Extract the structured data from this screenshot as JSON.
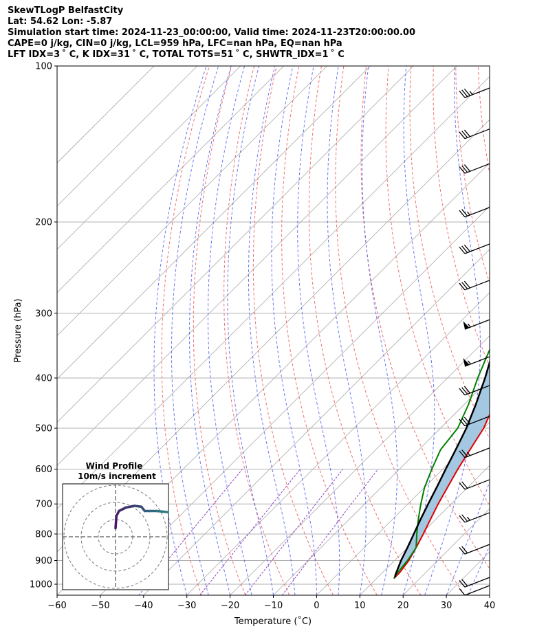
{
  "header": {
    "line1": "SkewTLogP BelfastCity",
    "line2": "Lat: 54.62   Lon: -5.87",
    "line3": "Simulation start time: 2024-11-23_00:00:00, Valid time: 2024-11-23T20:00:00.00",
    "line4": "CAPE=0 j/kg, CIN=0 j/kg, LCL=959 hPa, LFC=nan hPa, EQ=nan hPa",
    "line5": "LFT IDX=3 ˚ C, K IDX=31 ˚ C, TOTAL TOTS=51 ˚ C, SHWTR_IDX=1 ˚ C"
  },
  "chart_data": {
    "type": "line",
    "title": "SkewTLogP BelfastCity",
    "xlabel": "Temperature (˚C)",
    "ylabel": "Pressure (hPa)",
    "xlim": [
      -60,
      40
    ],
    "ylim": [
      1050,
      100
    ],
    "y_scale": "log",
    "grid": true,
    "x_ticks": [
      -60,
      -50,
      -40,
      -30,
      -20,
      -10,
      0,
      10,
      20,
      30,
      40
    ],
    "y_ticks": [
      100,
      200,
      300,
      400,
      500,
      600,
      700,
      800,
      900,
      1000
    ],
    "colors": {
      "temperature": "#e00000",
      "dewpoint": "#008000",
      "parcel": "#000000",
      "fill": "#9fc5e0",
      "dry_adiabats": "#f06060",
      "moist_adiabats": "#5060f0",
      "mixing_ratio": "#9040c0",
      "isotherms": "#aaaaaa"
    },
    "series": [
      {
        "name": "Temperature",
        "points": [
          [
            14.0,
            975
          ],
          [
            14.0,
            950
          ],
          [
            13.3,
            900
          ],
          [
            12.0,
            850
          ],
          [
            10.5,
            800
          ],
          [
            8.8,
            750
          ],
          [
            7.0,
            700
          ],
          [
            5.3,
            650
          ],
          [
            3.5,
            600
          ],
          [
            1.8,
            550
          ],
          [
            0.0,
            500
          ],
          [
            -1.8,
            470
          ],
          [
            -3.0,
            450
          ],
          [
            -5.5,
            400
          ],
          [
            -8.3,
            350
          ],
          [
            -11.5,
            300
          ],
          [
            -14.3,
            270
          ],
          [
            -18.4,
            250
          ],
          [
            -21.4,
            230
          ],
          [
            -23.7,
            210
          ],
          [
            -26.0,
            200
          ],
          [
            -31.8,
            180
          ],
          [
            -36.0,
            160
          ],
          [
            -42.0,
            140
          ],
          [
            -44.5,
            130
          ],
          [
            -47.0,
            120
          ],
          [
            -52.0,
            110
          ],
          [
            -53.0,
            100
          ]
        ]
      },
      {
        "name": "Dewpoint",
        "points": [
          [
            14.0,
            975
          ],
          [
            13.5,
            950
          ],
          [
            13.0,
            900
          ],
          [
            12.0,
            850
          ],
          [
            9.0,
            800
          ],
          [
            6.0,
            750
          ],
          [
            3.0,
            700
          ],
          [
            0.0,
            650
          ],
          [
            -2.5,
            600
          ],
          [
            -5.0,
            550
          ],
          [
            -6.0,
            500
          ],
          [
            -9.0,
            450
          ],
          [
            -13.0,
            400
          ],
          [
            -17.0,
            350
          ],
          [
            -22.0,
            300
          ],
          [
            -26.0,
            270
          ],
          [
            -29.5,
            250
          ],
          [
            -32.0,
            230
          ],
          [
            -35.0,
            210
          ],
          [
            -37.5,
            200
          ],
          [
            -42.0,
            180
          ],
          [
            -49.0,
            160
          ],
          [
            -56.0,
            140
          ],
          [
            -60.0,
            130
          ],
          [
            -63.0,
            120
          ],
          [
            -66.0,
            110
          ],
          [
            -69.0,
            100
          ]
        ]
      },
      {
        "name": "Parcel",
        "points": [
          [
            14.0,
            970
          ],
          [
            13.5,
            959
          ],
          [
            11.5,
            900
          ],
          [
            10.0,
            850
          ],
          [
            8.3,
            800
          ],
          [
            6.5,
            750
          ],
          [
            4.7,
            700
          ],
          [
            2.8,
            650
          ],
          [
            0.7,
            600
          ],
          [
            -1.5,
            550
          ],
          [
            -4.0,
            500
          ],
          [
            -7.3,
            450
          ],
          [
            -11.3,
            400
          ],
          [
            -16.2,
            350
          ],
          [
            -22.4,
            300
          ],
          [
            -26.8,
            270
          ],
          [
            -30.2,
            250
          ],
          [
            -34.2,
            230
          ],
          [
            -38.6,
            210
          ],
          [
            -41.3,
            200
          ],
          [
            -46.5,
            180
          ],
          [
            -52.0,
            160
          ],
          [
            -58.5,
            140
          ],
          [
            -62.0,
            130
          ],
          [
            -66.0,
            120
          ],
          [
            -70.2,
            110
          ],
          [
            -74.7,
            100
          ]
        ]
      }
    ],
    "wind_barbs": [
      {
        "p": 100,
        "knots": 35
      },
      {
        "p": 120,
        "knots": 30
      },
      {
        "p": 140,
        "knots": 30
      },
      {
        "p": 170,
        "knots": 25
      },
      {
        "p": 200,
        "knots": 30
      },
      {
        "p": 235,
        "knots": 30
      },
      {
        "p": 280,
        "knots": 55
      },
      {
        "p": 330,
        "knots": 55
      },
      {
        "p": 375,
        "knots": 30
      },
      {
        "p": 430,
        "knots": 30
      },
      {
        "p": 495,
        "knots": 25
      },
      {
        "p": 570,
        "knots": 20
      },
      {
        "p": 660,
        "knots": 25
      },
      {
        "p": 760,
        "knots": 20
      },
      {
        "p": 880,
        "knots": 20
      },
      {
        "p": 1000,
        "knots": 10
      }
    ]
  },
  "hodograph": {
    "title_line1": "Wind Profile",
    "title_line2": "10m/s increment",
    "ring_step_ms": 10,
    "points": [
      [
        0,
        5
      ],
      [
        0.5,
        12
      ],
      [
        2,
        15
      ],
      [
        6,
        17
      ],
      [
        11,
        18
      ],
      [
        15,
        17.5
      ],
      [
        17,
        15
      ],
      [
        20,
        15
      ],
      [
        24,
        15
      ],
      [
        29,
        14.5
      ],
      [
        33,
        14
      ],
      [
        34,
        16
      ]
    ]
  }
}
